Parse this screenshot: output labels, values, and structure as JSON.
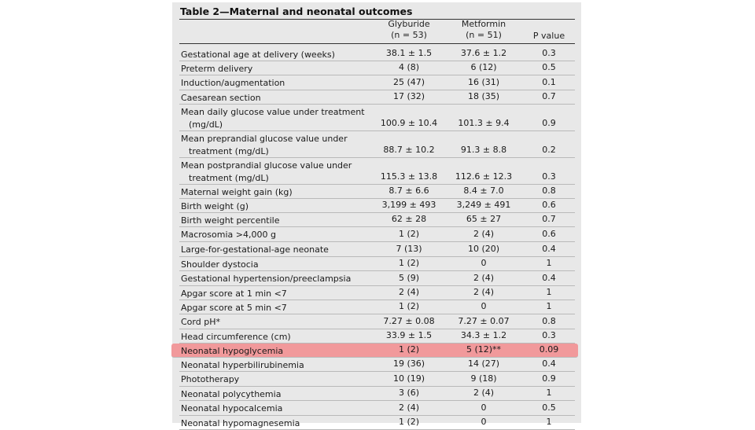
{
  "table": {
    "title": "Table 2—Maternal and neonatal outcomes",
    "col_glyburide": "Glyburide",
    "col_glyburide_n": "(n = 53)",
    "col_metformin": "Metformin",
    "col_metformin_n": "(n = 51)",
    "col_p": "P value",
    "rows": [
      {
        "label": "Gestational age at delivery (weeks)",
        "label2": "",
        "g": "38.1 ± 1.5",
        "m": "37.6 ± 1.2",
        "p": "0.3"
      },
      {
        "label": "Preterm delivery",
        "label2": "",
        "g": "4 (8)",
        "m": "6 (12)",
        "p": "0.5"
      },
      {
        "label": "Induction/augmentation",
        "label2": "",
        "g": "25 (47)",
        "m": "16 (31)",
        "p": "0.1"
      },
      {
        "label": "Caesarean section",
        "label2": "",
        "g": "17 (32)",
        "m": "18 (35)",
        "p": "0.7"
      },
      {
        "label": "Mean daily glucose value under treatment",
        "label2": "(mg/dL)",
        "g": "100.9 ± 10.4",
        "m": "101.3 ± 9.4",
        "p": "0.9"
      },
      {
        "label": "Mean preprandial glucose value under",
        "label2": "treatment (mg/dL)",
        "g": "88.7 ± 10.2",
        "m": "91.3 ± 8.8",
        "p": "0.2"
      },
      {
        "label": "Mean postprandial glucose value under",
        "label2": "treatment (mg/dL)",
        "g": "115.3 ± 13.8",
        "m": "112.6 ± 12.3",
        "p": "0.3"
      },
      {
        "label": "Maternal weight gain (kg)",
        "label2": "",
        "g": "8.7 ± 6.6",
        "m": "8.4 ± 7.0",
        "p": "0.8"
      },
      {
        "label": "Birth weight (g)",
        "label2": "",
        "g": "3,199 ± 493",
        "m": "3,249 ± 491",
        "p": "0.6"
      },
      {
        "label": "Birth weight percentile",
        "label2": "",
        "g": "62 ± 28",
        "m": "65 ± 27",
        "p": "0.7"
      },
      {
        "label": "Macrosomia >4,000 g",
        "label2": "",
        "g": "1 (2)",
        "m": "2 (4)",
        "p": "0.6"
      },
      {
        "label": "Large-for-gestational-age neonate",
        "label2": "",
        "g": "7 (13)",
        "m": "10 (20)",
        "p": "0.4"
      },
      {
        "label": "Shoulder dystocia",
        "label2": "",
        "g": "1 (2)",
        "m": "0",
        "p": "1"
      },
      {
        "label": "Gestational hypertension/preeclampsia",
        "label2": "",
        "g": "5 (9)",
        "m": "2 (4)",
        "p": "0.4"
      },
      {
        "label": "Apgar score at 1 min <7",
        "label2": "",
        "g": "2 (4)",
        "m": "2 (4)",
        "p": "1"
      },
      {
        "label": "Apgar score at 5 min <7",
        "label2": "",
        "g": "1 (2)",
        "m": "0",
        "p": "1"
      },
      {
        "label": "Cord pH*",
        "label2": "",
        "g": "7.27 ± 0.08",
        "m": "7.27 ± 0.07",
        "p": "0.8"
      },
      {
        "label": "Head circumference (cm)",
        "label2": "",
        "g": "33.9 ± 1.5",
        "m": "34.3 ± 1.2",
        "p": "0.3"
      },
      {
        "label": "Neonatal hypoglycemia",
        "label2": "",
        "g": "1 (2)",
        "m": "5 (12)**",
        "p": "0.09",
        "highlight": true
      },
      {
        "label": "Neonatal hyperbilirubinemia",
        "label2": "",
        "g": "19 (36)",
        "m": "14 (27)",
        "p": "0.4"
      },
      {
        "label": "Phototherapy",
        "label2": "",
        "g": "10 (19)",
        "m": "9 (18)",
        "p": "0.9"
      },
      {
        "label": "Neonatal polycythemia",
        "label2": "",
        "g": "3 (6)",
        "m": "2 (4)",
        "p": "1"
      },
      {
        "label": "Neonatal hypocalcemia",
        "label2": "",
        "g": "2 (4)",
        "m": "0",
        "p": "0.5"
      },
      {
        "label": "Neonatal hypomagnesemia",
        "label2": "",
        "g": "1 (2)",
        "m": "0",
        "p": "1"
      }
    ]
  },
  "colors": {
    "highlight": "#f1999b",
    "panel": "#e8e8e8"
  }
}
